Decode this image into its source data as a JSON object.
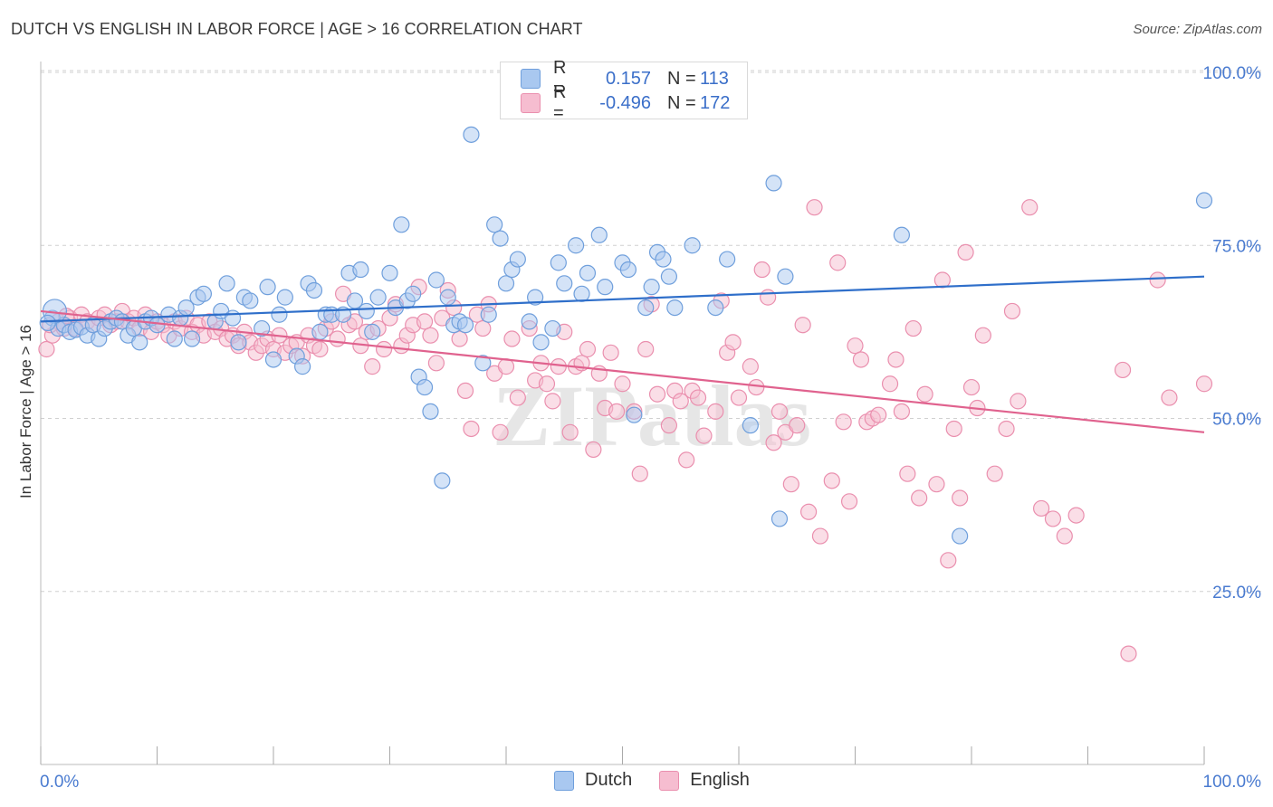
{
  "header": {
    "title": "DUTCH VS ENGLISH IN LABOR FORCE | AGE > 16 CORRELATION CHART",
    "source": "Source: ZipAtlas.com"
  },
  "legend": {
    "rows": [
      {
        "r_label": "R =",
        "r_value": "0.157",
        "n_label": "N =",
        "n_value": "113"
      },
      {
        "r_label": "R =",
        "r_value": "-0.496",
        "n_label": "N =",
        "n_value": "172"
      }
    ]
  },
  "bottom_legend": [
    "Dutch",
    "English"
  ],
  "colors": {
    "dutch_fill": "#a9c8f0",
    "dutch_stroke": "#6f9fdc",
    "dutch_line": "#2f6fca",
    "english_fill": "#f6bdd0",
    "english_stroke": "#ea8fae",
    "english_line": "#e0628e",
    "axis_label": "#4a7bd0",
    "grid": "#d0d0d0"
  },
  "chart_data": {
    "type": "scatter",
    "title": "DUTCH VS ENGLISH IN LABOR FORCE | AGE > 16 CORRELATION CHART",
    "xlabel": "",
    "ylabel": "In Labor Force | Age > 16",
    "xlim": [
      0,
      100
    ],
    "ylim": [
      0,
      100
    ],
    "x_tick_labels": [
      "0.0%",
      "100.0%"
    ],
    "y_tick_labels": [
      "25.0%",
      "50.0%",
      "75.0%",
      "100.0%"
    ],
    "y_ticks": [
      25,
      50,
      75,
      100
    ],
    "grid": true,
    "watermark": "ZIPatlas",
    "series": [
      {
        "name": "Dutch",
        "trend": {
          "x": [
            0,
            100
          ],
          "y": [
            64.0,
            70.5
          ]
        },
        "points": [
          [
            1,
            64.5
          ],
          [
            1.5,
            63
          ],
          [
            2,
            63.5
          ],
          [
            2.5,
            62.5
          ],
          [
            3,
            62.8
          ],
          [
            3.5,
            63.2
          ],
          [
            4,
            62
          ],
          [
            4.5,
            63.5
          ],
          [
            5,
            61.5
          ],
          [
            5.5,
            63
          ],
          [
            6,
            64
          ],
          [
            6.5,
            64.5
          ],
          [
            7,
            64
          ],
          [
            7.5,
            62
          ],
          [
            8,
            63
          ],
          [
            8.5,
            61
          ],
          [
            9,
            64
          ],
          [
            9.5,
            64.5
          ],
          [
            10,
            63.5
          ],
          [
            11,
            65
          ],
          [
            11.5,
            61.5
          ],
          [
            12,
            64.5
          ],
          [
            12.5,
            66
          ],
          [
            13,
            61.5
          ],
          [
            13.5,
            67.5
          ],
          [
            14,
            68
          ],
          [
            15,
            64
          ],
          [
            15.5,
            65.5
          ],
          [
            16,
            69.5
          ],
          [
            16.5,
            64.5
          ],
          [
            17,
            61
          ],
          [
            17.5,
            67.5
          ],
          [
            18,
            67
          ],
          [
            19,
            63
          ],
          [
            19.5,
            69
          ],
          [
            20,
            58.5
          ],
          [
            20.5,
            65
          ],
          [
            21,
            67.5
          ],
          [
            22,
            59
          ],
          [
            22.5,
            57.5
          ],
          [
            23,
            69.5
          ],
          [
            23.5,
            68.5
          ],
          [
            24,
            62.5
          ],
          [
            24.5,
            65
          ],
          [
            25,
            65
          ],
          [
            26,
            65
          ],
          [
            26.5,
            71
          ],
          [
            27,
            67
          ],
          [
            27.5,
            71.5
          ],
          [
            28,
            65.5
          ],
          [
            28.5,
            62.5
          ],
          [
            29,
            67.5
          ],
          [
            30,
            71
          ],
          [
            30.5,
            66
          ],
          [
            31,
            78
          ],
          [
            31.5,
            67
          ],
          [
            32,
            68
          ],
          [
            32.5,
            56
          ],
          [
            33,
            54.5
          ],
          [
            33.5,
            51
          ],
          [
            34,
            70
          ],
          [
            34.5,
            41
          ],
          [
            35,
            67.5
          ],
          [
            35.5,
            63.5
          ],
          [
            36,
            64
          ],
          [
            36.5,
            63.5
          ],
          [
            37,
            91
          ],
          [
            38,
            58
          ],
          [
            38.5,
            65
          ],
          [
            39,
            78
          ],
          [
            39.5,
            76
          ],
          [
            40,
            69.5
          ],
          [
            40.5,
            71.5
          ],
          [
            41,
            73
          ],
          [
            42,
            64
          ],
          [
            42.5,
            67.5
          ],
          [
            43,
            61
          ],
          [
            44,
            63
          ],
          [
            44.5,
            72.5
          ],
          [
            45,
            69.5
          ],
          [
            46,
            75
          ],
          [
            46.5,
            68
          ],
          [
            47,
            71
          ],
          [
            48,
            76.5
          ],
          [
            48.5,
            69
          ],
          [
            50,
            72.5
          ],
          [
            50.5,
            71.5
          ],
          [
            51,
            50.5
          ],
          [
            52,
            66
          ],
          [
            52.5,
            69
          ],
          [
            53,
            74
          ],
          [
            53.5,
            73
          ],
          [
            54,
            70.5
          ],
          [
            54.5,
            66
          ],
          [
            56,
            75
          ],
          [
            58,
            66
          ],
          [
            59,
            73
          ],
          [
            61,
            49
          ],
          [
            63,
            84
          ],
          [
            63.5,
            35.5
          ],
          [
            64,
            70.5
          ],
          [
            74,
            76.5
          ],
          [
            79,
            33
          ],
          [
            100,
            81.5
          ],
          [
            1.2,
            65.5
          ],
          [
            0.6,
            63.8
          ]
        ]
      },
      {
        "name": "English",
        "trend": {
          "x": [
            0,
            100
          ],
          "y": [
            65.5,
            48.0
          ]
        },
        "points": [
          [
            0.5,
            60
          ],
          [
            1,
            62
          ],
          [
            1.5,
            64
          ],
          [
            2,
            63
          ],
          [
            2.5,
            64.5
          ],
          [
            3,
            63
          ],
          [
            3.5,
            65
          ],
          [
            4,
            64
          ],
          [
            4.5,
            63.5
          ],
          [
            5,
            64.5
          ],
          [
            5.5,
            65
          ],
          [
            6,
            63.5
          ],
          [
            6.5,
            64
          ],
          [
            7,
            65.5
          ],
          [
            7.5,
            64
          ],
          [
            8,
            64.5
          ],
          [
            8.5,
            63
          ],
          [
            9,
            65
          ],
          [
            9.5,
            62.5
          ],
          [
            10,
            64
          ],
          [
            10.5,
            63.5
          ],
          [
            11,
            62
          ],
          [
            11.5,
            64
          ],
          [
            12,
            63
          ],
          [
            12.5,
            64.5
          ],
          [
            13,
            62.5
          ],
          [
            13.5,
            63.5
          ],
          [
            14,
            62
          ],
          [
            14.5,
            64
          ],
          [
            15,
            62.5
          ],
          [
            15.5,
            63
          ],
          [
            16,
            61.5
          ],
          [
            16.5,
            62
          ],
          [
            17,
            60.5
          ],
          [
            17.5,
            62.5
          ],
          [
            18,
            61
          ],
          [
            18.5,
            59.5
          ],
          [
            19,
            60.5
          ],
          [
            19.5,
            61.5
          ],
          [
            20,
            60
          ],
          [
            20.5,
            62
          ],
          [
            21,
            59.5
          ],
          [
            21.5,
            60.5
          ],
          [
            22,
            61
          ],
          [
            22.5,
            59
          ],
          [
            23,
            62
          ],
          [
            23.5,
            60.5
          ],
          [
            24,
            60
          ],
          [
            24.5,
            63
          ],
          [
            25,
            64
          ],
          [
            25.5,
            61.5
          ],
          [
            26,
            68
          ],
          [
            26.5,
            63.5
          ],
          [
            27,
            64
          ],
          [
            27.5,
            60.5
          ],
          [
            28,
            62.5
          ],
          [
            28.5,
            57.5
          ],
          [
            29,
            63
          ],
          [
            29.5,
            60
          ],
          [
            30,
            64.5
          ],
          [
            30.5,
            66.5
          ],
          [
            31,
            60.5
          ],
          [
            31.5,
            62
          ],
          [
            32,
            63.5
          ],
          [
            32.5,
            69
          ],
          [
            33,
            64
          ],
          [
            33.5,
            62
          ],
          [
            34,
            58
          ],
          [
            34.5,
            64.5
          ],
          [
            35,
            68.5
          ],
          [
            35.5,
            66
          ],
          [
            36,
            61.5
          ],
          [
            36.5,
            54
          ],
          [
            37,
            48.5
          ],
          [
            37.5,
            65
          ],
          [
            38,
            63
          ],
          [
            38.5,
            66.5
          ],
          [
            39,
            56.5
          ],
          [
            39.5,
            48
          ],
          [
            40,
            57.5
          ],
          [
            40.5,
            61.5
          ],
          [
            41,
            53
          ],
          [
            42,
            63
          ],
          [
            42.5,
            55.5
          ],
          [
            43,
            58
          ],
          [
            43.5,
            55
          ],
          [
            44,
            52.5
          ],
          [
            44.5,
            57.5
          ],
          [
            45,
            62.5
          ],
          [
            45.5,
            48
          ],
          [
            46,
            57.5
          ],
          [
            46.5,
            58
          ],
          [
            47,
            60
          ],
          [
            47.5,
            45.5
          ],
          [
            48,
            56.5
          ],
          [
            48.5,
            51.5
          ],
          [
            49,
            59.5
          ],
          [
            49.5,
            51
          ],
          [
            50,
            55
          ],
          [
            51,
            51
          ],
          [
            51.5,
            42
          ],
          [
            52,
            60
          ],
          [
            52.5,
            66.5
          ],
          [
            53,
            53.5
          ],
          [
            54,
            49
          ],
          [
            54.5,
            54
          ],
          [
            55,
            52.5
          ],
          [
            55.5,
            44
          ],
          [
            56,
            54
          ],
          [
            56.5,
            53
          ],
          [
            57,
            47.5
          ],
          [
            58,
            51
          ],
          [
            58.5,
            67
          ],
          [
            59,
            59.5
          ],
          [
            59.5,
            61
          ],
          [
            60,
            53
          ],
          [
            61,
            57.5
          ],
          [
            61.5,
            54.5
          ],
          [
            62,
            71.5
          ],
          [
            62.5,
            67.5
          ],
          [
            63,
            46.5
          ],
          [
            63.5,
            51
          ],
          [
            64,
            48
          ],
          [
            64.5,
            40.5
          ],
          [
            65,
            49
          ],
          [
            65.5,
            63.5
          ],
          [
            66,
            36.5
          ],
          [
            66.5,
            80.5
          ],
          [
            67,
            33
          ],
          [
            68,
            41
          ],
          [
            68.5,
            72.5
          ],
          [
            69,
            49.5
          ],
          [
            69.5,
            38
          ],
          [
            70,
            60.5
          ],
          [
            70.5,
            58.5
          ],
          [
            71,
            49.5
          ],
          [
            71.5,
            50
          ],
          [
            72,
            50.5
          ],
          [
            73,
            55
          ],
          [
            73.5,
            58.5
          ],
          [
            74,
            51
          ],
          [
            74.5,
            42
          ],
          [
            75,
            63
          ],
          [
            75.5,
            38.5
          ],
          [
            76,
            53.5
          ],
          [
            77,
            40.5
          ],
          [
            77.5,
            70
          ],
          [
            78,
            29.5
          ],
          [
            78.5,
            48.5
          ],
          [
            79,
            38.5
          ],
          [
            79.5,
            74
          ],
          [
            80,
            54.5
          ],
          [
            80.5,
            51.5
          ],
          [
            81,
            62
          ],
          [
            82,
            42
          ],
          [
            83,
            48.5
          ],
          [
            83.5,
            65.5
          ],
          [
            84,
            52.5
          ],
          [
            85,
            80.5
          ],
          [
            86,
            37
          ],
          [
            87,
            35.5
          ],
          [
            88,
            33
          ],
          [
            89,
            36
          ],
          [
            93,
            57
          ],
          [
            93.5,
            16
          ],
          [
            96,
            70
          ],
          [
            97,
            53
          ],
          [
            100,
            55
          ],
          [
            0.8,
            63.5
          ],
          [
            2.2,
            64.8
          ]
        ]
      }
    ]
  }
}
